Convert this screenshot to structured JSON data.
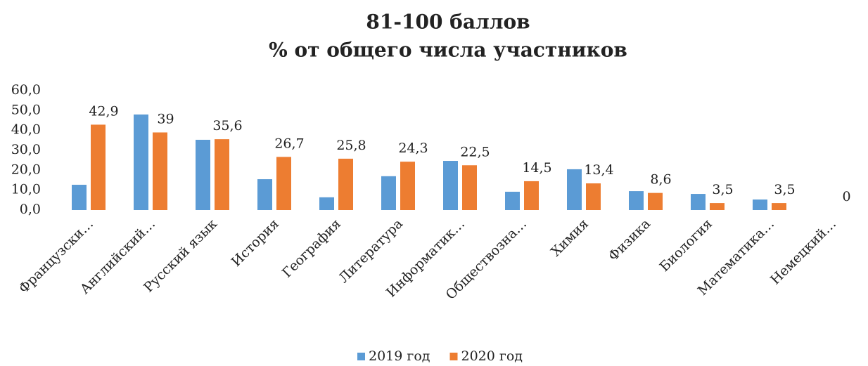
{
  "chart_data": {
    "type": "bar",
    "title": "81-100 баллов",
    "subtitle": "% от общего числа участников",
    "categories": [
      "Французски…",
      "Английский…",
      "Русский язык",
      "История",
      "География",
      "Литература",
      "Информатик…",
      "Обществозна…",
      "Химия",
      "Физика",
      "Биология",
      "Математика…",
      "Немецкий…"
    ],
    "series": [
      {
        "name": "2019 год",
        "color": "#5b9bd5",
        "values": [
          12.7,
          48,
          35.3,
          15.5,
          6.4,
          17,
          24.7,
          9.2,
          20.5,
          9.5,
          8.1,
          5.3,
          null
        ]
      },
      {
        "name": "2020 год",
        "color": "#ed7d31",
        "values": [
          42.9,
          39,
          35.6,
          26.7,
          25.8,
          24.3,
          22.5,
          14.5,
          13.4,
          8.6,
          3.5,
          3.5,
          0
        ],
        "value_labels": [
          "42,9",
          "39",
          "35,6",
          "26,7",
          "25,8",
          "24,3",
          "22,5",
          "14,5",
          "13,4",
          "8,6",
          "3,5",
          "3,5",
          "0"
        ]
      }
    ],
    "ylim": [
      0,
      60
    ],
    "yticks": [
      {
        "value": 0,
        "label": "0,0"
      },
      {
        "value": 10,
        "label": "10,0"
      },
      {
        "value": 20,
        "label": "20,0"
      },
      {
        "value": 30,
        "label": "30,0"
      },
      {
        "value": 40,
        "label": "40,0"
      },
      {
        "value": 50,
        "label": "50,0"
      },
      {
        "value": 60,
        "label": "60,0"
      }
    ],
    "legend": "bottom"
  }
}
